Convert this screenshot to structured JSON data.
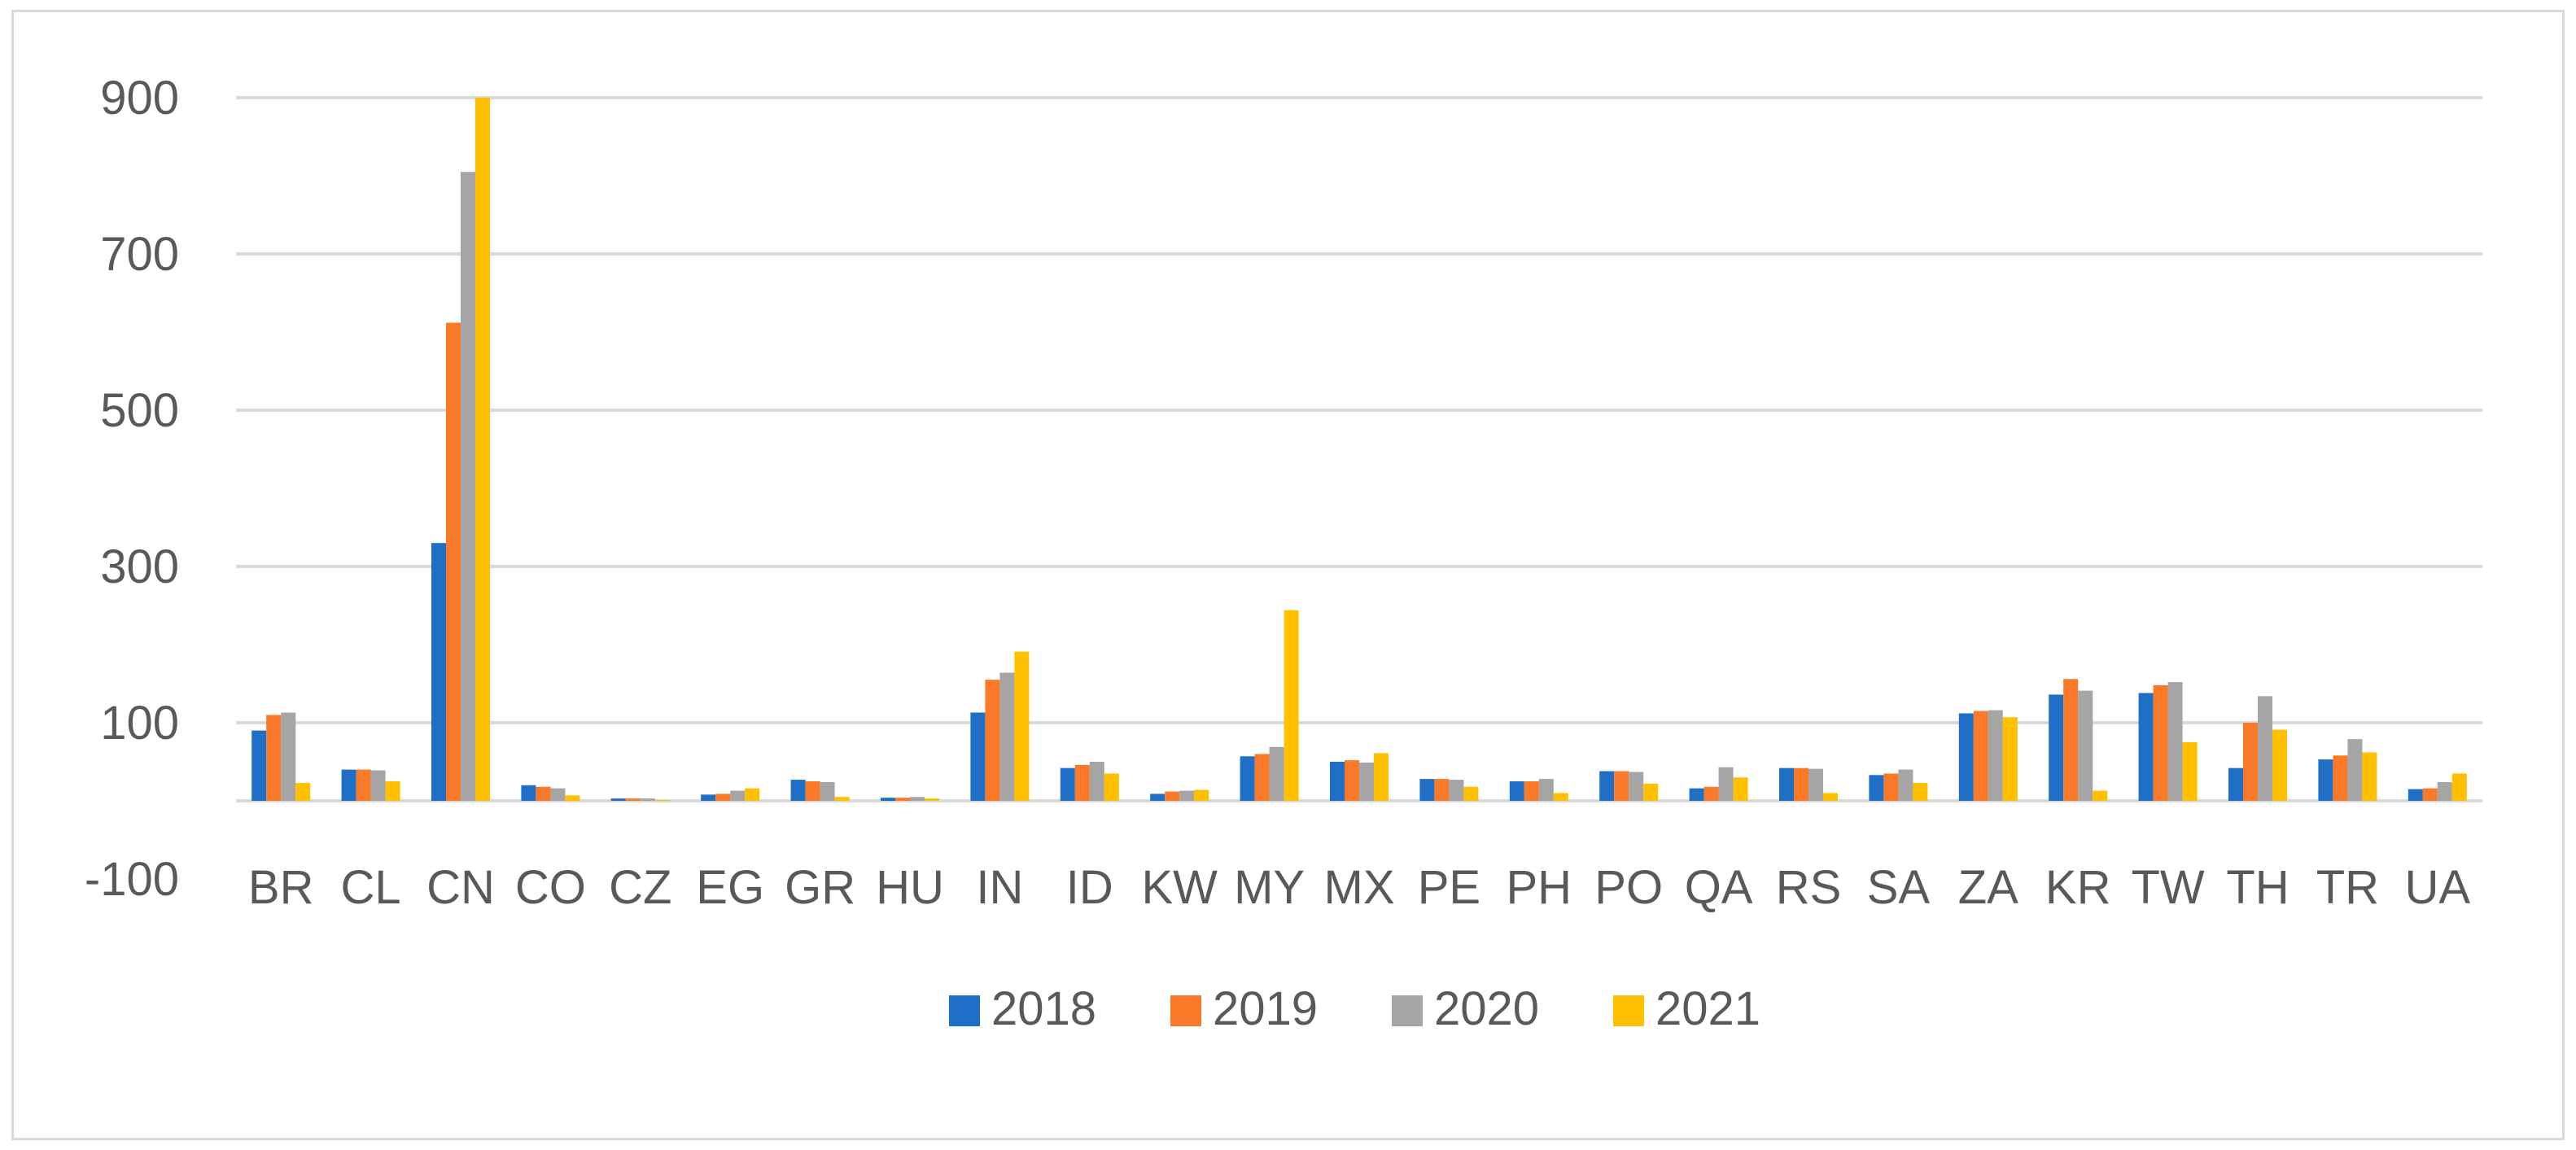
{
  "chart_data": {
    "type": "bar",
    "categories": [
      "BR",
      "CL",
      "CN",
      "CO",
      "CZ",
      "EG",
      "GR",
      "HU",
      "IN",
      "ID",
      "KW",
      "MY",
      "MX",
      "PE",
      "PH",
      "PO",
      "QA",
      "RS",
      "SA",
      "ZA",
      "KR",
      "TW",
      "TH",
      "TR",
      "UA"
    ],
    "series": [
      {
        "name": "2018",
        "color": "#1f6fc6",
        "values": [
          90,
          40,
          330,
          20,
          3,
          8,
          27,
          4,
          113,
          42,
          9,
          57,
          50,
          28,
          25,
          38,
          16,
          42,
          33,
          112,
          136,
          138,
          42,
          53,
          15
        ]
      },
      {
        "name": "2019",
        "color": "#fb7a2a",
        "values": [
          110,
          40,
          612,
          18,
          3,
          9,
          25,
          4,
          155,
          46,
          12,
          60,
          52,
          28,
          25,
          38,
          18,
          42,
          35,
          115,
          156,
          148,
          100,
          58,
          16
        ]
      },
      {
        "name": "2020",
        "color": "#a5a5a5",
        "values": [
          113,
          39,
          805,
          16,
          3,
          13,
          24,
          5,
          164,
          50,
          13,
          69,
          49,
          27,
          28,
          37,
          43,
          41,
          40,
          116,
          141,
          152,
          134,
          79,
          24
        ]
      },
      {
        "name": "2021",
        "color": "#ffc000",
        "values": [
          23,
          25,
          900,
          7,
          1,
          16,
          5,
          3,
          191,
          35,
          14,
          244,
          61,
          18,
          10,
          22,
          30,
          10,
          23,
          107,
          13,
          75,
          91,
          62,
          35
        ]
      }
    ],
    "title": "",
    "xlabel": "",
    "ylabel": "",
    "ylim": [
      -100,
      900
    ],
    "yticks": [
      -100,
      100,
      300,
      500,
      700,
      900
    ],
    "grid": true,
    "legend_position": "bottom"
  }
}
